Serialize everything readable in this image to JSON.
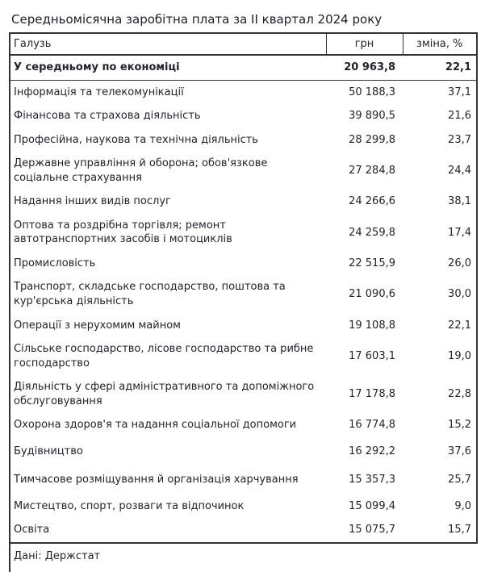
{
  "colors": {
    "border": "#33333b",
    "text": "#23232d",
    "background": "#ffffff"
  },
  "chart_data": {
    "type": "table",
    "title": "Середньомісячна заробітна плата за II квартал 2024 року",
    "source": "Дані: Держстат",
    "columns": [
      "Галузь",
      "грн",
      "зміна, %"
    ],
    "rows": [
      {
        "galuz": "У середньому по економіці",
        "uah": "20 963,8",
        "change_pct": "22,1",
        "emphasis": true
      },
      {
        "galuz": "Інформація та телекомунікації",
        "uah": "50 188,3",
        "change_pct": "37,1"
      },
      {
        "galuz": "Фінансова та страхова діяльність",
        "uah": "39 890,5",
        "change_pct": "21,6"
      },
      {
        "galuz": "Професійна, наукова та технічна діяльність",
        "uah": "28 299,8",
        "change_pct": "23,7"
      },
      {
        "galuz": "Державне управління й оборона; обов'язкове соціальне страхування",
        "uah": "27 284,8",
        "change_pct": "24,4"
      },
      {
        "galuz": "Надання інших видів послуг",
        "uah": "24 266,6",
        "change_pct": "38,1"
      },
      {
        "galuz": "Оптова та роздрібна торгівля; ремонт автотранспортних засобів і мотоциклів",
        "uah": "24 259,8",
        "change_pct": "17,4"
      },
      {
        "galuz": "Промисловість",
        "uah": "22 515,9",
        "change_pct": "26,0"
      },
      {
        "galuz": "Транспорт, складське господарство, поштова та кур'єрська діяльність",
        "uah": "21 090,6",
        "change_pct": "30,0"
      },
      {
        "galuz": "Операції з нерухомим майном",
        "uah": "19 108,8",
        "change_pct": "22,1"
      },
      {
        "galuz": "Сільське господарство, лісове господарство та рибне господарство",
        "uah": "17 603,1",
        "change_pct": "19,0"
      },
      {
        "galuz": "Діяльність у сфері адміністративного та допоміжного обслуговування",
        "uah": "17 178,8",
        "change_pct": "22,8"
      },
      {
        "galuz": "Охорона здоров'я та надання соціальної допомоги",
        "uah": "16 774,8",
        "change_pct": "15,2"
      },
      {
        "galuz": "Будівництво",
        "uah": "16 292,2",
        "change_pct": "37,6"
      },
      {
        "galuz": "Тимчасове розміщування й організація харчування",
        "uah": "15 357,3",
        "change_pct": "25,7"
      },
      {
        "galuz": "Мистецтво, спорт, розваги та відпочинок",
        "uah": "15 099,4",
        "change_pct": "9,0"
      },
      {
        "galuz": "Освіта",
        "uah": "15 075,7",
        "change_pct": "15,7"
      }
    ]
  }
}
